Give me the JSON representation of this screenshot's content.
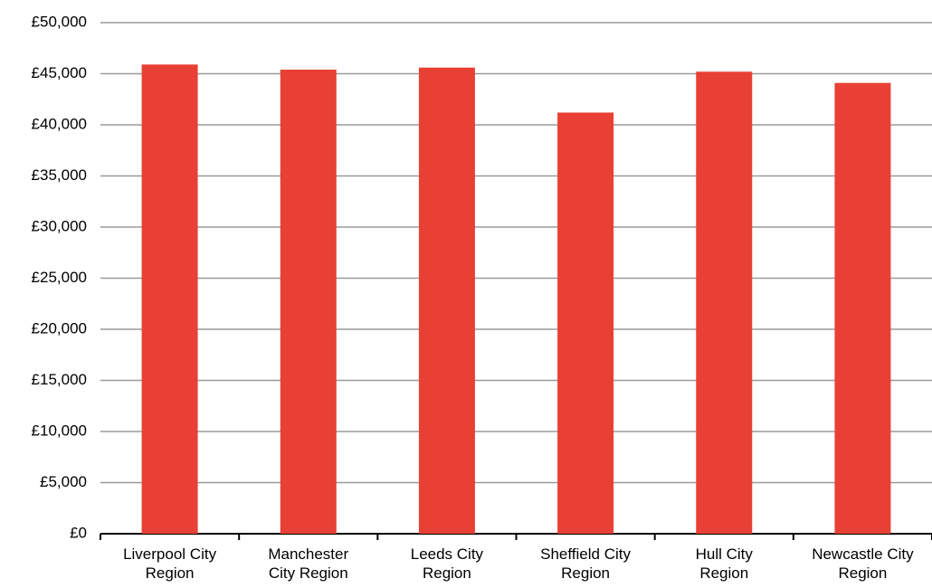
{
  "chart_data": {
    "type": "bar",
    "categories": [
      "Liverpool City\nRegion",
      "Manchester\nCity Region",
      "Leeds City\nRegion",
      "Sheffield City\nRegion",
      "Hull City\nRegion",
      "Newcastle City\nRegion"
    ],
    "values": [
      45900,
      45400,
      45600,
      41200,
      45200,
      44100
    ],
    "color": "#e84034",
    "ylim": [
      0,
      50000
    ],
    "yticks": [
      {
        "value": 0,
        "label": "£0"
      },
      {
        "value": 5000,
        "label": "£5,000"
      },
      {
        "value": 10000,
        "label": "£10,000"
      },
      {
        "value": 15000,
        "label": "£15,000"
      },
      {
        "value": 20000,
        "label": "£20,000"
      },
      {
        "value": 25000,
        "label": "£25,000"
      },
      {
        "value": 30000,
        "label": "£30,000"
      },
      {
        "value": 35000,
        "label": "£35,000"
      },
      {
        "value": 40000,
        "label": "£40,000"
      },
      {
        "value": 45000,
        "label": "£45,000"
      },
      {
        "value": 50000,
        "label": "£50,000"
      }
    ],
    "grid": true
  }
}
